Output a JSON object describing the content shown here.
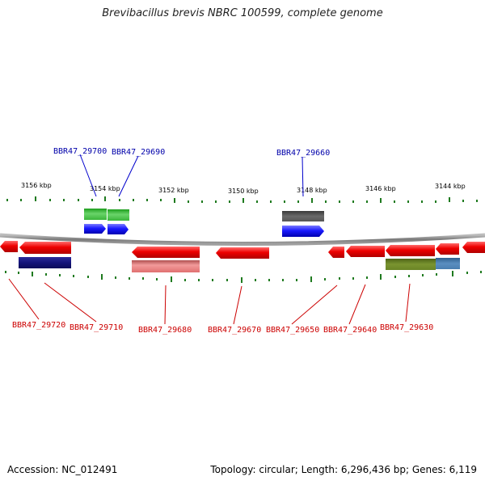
{
  "title": "Brevibacillus brevis NBRC 100599, complete genome",
  "accession": "Accession: NC_012491",
  "topology": "Topology: circular; Length: 6,296,436 bp; Genes: 6,119",
  "kbp_labels": [
    "3156 kbp",
    "3154 kbp",
    "3152 kbp",
    "3150 kbp",
    "3148 kbp",
    "3146 kbp",
    "3144 kbp"
  ],
  "colors": {
    "backbone": "#8c8c8c",
    "ticks": "#1f7a1f",
    "forward_label": "#0000aa",
    "reverse_label": "#cc0000",
    "forward_cds": "#1a1aff",
    "reverse_cds": "#ee0000"
  },
  "top_labels": [
    "BBR47_29700",
    "BBR47_29690",
    "BBR47_29660"
  ],
  "bottom_labels": [
    "BBR47_29720",
    "BBR47_29710",
    "BBR47_29680",
    "BBR47_29670",
    "BBR47_29650",
    "BBR47_29640",
    "BBR47_29630"
  ]
}
